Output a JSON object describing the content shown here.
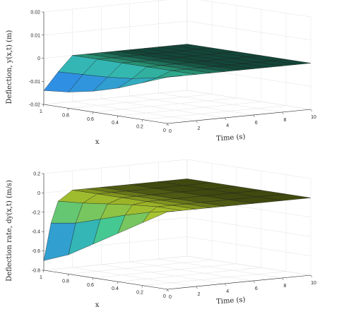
{
  "chart_data": [
    {
      "type": "surface3d",
      "title": "",
      "xlabel": "x",
      "ylabel": "Time (s)",
      "zlabel": "Deflection, y(x,t)  (m)",
      "xlim": [
        0,
        1
      ],
      "tlim": [
        0,
        10
      ],
      "zlim": [
        -0.02,
        0.02
      ],
      "x_ticks": [
        "0",
        "0.2",
        "0.4",
        "0.6",
        "0.8",
        "1"
      ],
      "t_ticks": [
        "0",
        "2",
        "4",
        "6",
        "8",
        "10"
      ],
      "z_ticks": [
        "-0.02",
        "-0.01",
        "0",
        "0.01",
        "0.02"
      ],
      "grid": true,
      "colormap": [
        "#3e26a8",
        "#2f8ee4",
        "#36c8a0",
        "#a6c531",
        "#f9fb15"
      ],
      "x": [
        0,
        0.2,
        0.4,
        0.6,
        0.8,
        1.0
      ],
      "t": [
        0,
        1,
        2,
        3,
        4,
        5,
        6,
        7,
        8,
        9,
        10
      ],
      "z": [
        [
          0,
          0,
          0,
          0,
          0,
          0,
          0,
          0,
          0,
          0,
          0
        ],
        [
          -0.004,
          -0.0025,
          0,
          0,
          0,
          0,
          0,
          0,
          0,
          0,
          0
        ],
        [
          -0.008,
          -0.0045,
          0,
          0,
          0,
          0,
          0,
          0,
          0,
          0,
          0
        ],
        [
          -0.011,
          -0.0055,
          0,
          0,
          0,
          0,
          0,
          0,
          0,
          0,
          0
        ],
        [
          -0.013,
          -0.006,
          0,
          0,
          0,
          0,
          0,
          0,
          0,
          0,
          0
        ],
        [
          -0.014,
          -0.0065,
          0,
          0,
          0,
          0,
          0,
          0,
          0,
          0,
          0
        ]
      ]
    },
    {
      "type": "surface3d",
      "title": "",
      "xlabel": "x",
      "ylabel": "Time (s)",
      "zlabel": "Deflection rate, dy(x,t)  (m/s)",
      "xlim": [
        0,
        1
      ],
      "tlim": [
        0,
        10
      ],
      "zlim": [
        -0.8,
        0.2
      ],
      "x_ticks": [
        "0",
        "0.2",
        "0.4",
        "0.6",
        "0.8",
        "1"
      ],
      "t_ticks": [
        "0",
        "2",
        "4",
        "6",
        "8",
        "10"
      ],
      "z_ticks": [
        "-0.8",
        "-0.6",
        "-0.4",
        "-0.2",
        "0",
        "0.2"
      ],
      "grid": true,
      "colormap": [
        "#3e26a8",
        "#2f8ee4",
        "#36c8a0",
        "#a6c531",
        "#f9fb15"
      ],
      "x": [
        0,
        0.2,
        0.4,
        0.6,
        0.8,
        1.0
      ],
      "t": [
        0,
        0.5,
        1,
        2,
        3,
        4,
        6,
        8,
        10
      ],
      "z": [
        [
          0,
          0,
          0,
          0,
          0,
          0,
          0,
          0,
          0
        ],
        [
          -0.15,
          -0.05,
          0,
          0,
          0,
          0,
          0,
          0,
          0
        ],
        [
          -0.3,
          -0.12,
          -0.02,
          0,
          0,
          0,
          0,
          0,
          0
        ],
        [
          -0.45,
          -0.2,
          -0.05,
          0,
          0,
          0,
          0,
          0,
          0
        ],
        [
          -0.6,
          -0.28,
          -0.08,
          0,
          0,
          0,
          0,
          0,
          0
        ],
        [
          -0.7,
          -0.32,
          -0.1,
          0,
          0,
          0,
          0,
          0,
          0
        ]
      ]
    }
  ]
}
